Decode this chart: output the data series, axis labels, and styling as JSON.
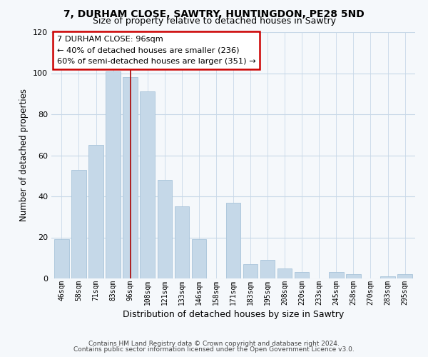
{
  "title1": "7, DURHAM CLOSE, SAWTRY, HUNTINGDON, PE28 5ND",
  "title2": "Size of property relative to detached houses in Sawtry",
  "xlabel": "Distribution of detached houses by size in Sawtry",
  "ylabel": "Number of detached properties",
  "categories": [
    "46sqm",
    "58sqm",
    "71sqm",
    "83sqm",
    "96sqm",
    "108sqm",
    "121sqm",
    "133sqm",
    "146sqm",
    "158sqm",
    "171sqm",
    "183sqm",
    "195sqm",
    "208sqm",
    "220sqm",
    "233sqm",
    "245sqm",
    "258sqm",
    "270sqm",
    "283sqm",
    "295sqm"
  ],
  "values": [
    19,
    53,
    65,
    101,
    98,
    91,
    48,
    35,
    19,
    0,
    37,
    7,
    9,
    5,
    3,
    0,
    3,
    2,
    0,
    1,
    2
  ],
  "bar_color": "#c5d8e8",
  "bar_edge_color": "#a8c4da",
  "highlight_bar_index": 4,
  "highlight_line_color": "#aa0000",
  "ylim": [
    0,
    120
  ],
  "yticks": [
    0,
    20,
    40,
    60,
    80,
    100,
    120
  ],
  "annotation_title": "7 DURHAM CLOSE: 96sqm",
  "annotation_line1": "← 40% of detached houses are smaller (236)",
  "annotation_line2": "60% of semi-detached houses are larger (351) →",
  "annotation_box_color": "#ffffff",
  "annotation_border_color": "#cc0000",
  "footer1": "Contains HM Land Registry data © Crown copyright and database right 2024.",
  "footer2": "Contains public sector information licensed under the Open Government Licence v3.0.",
  "background_color": "#f5f8fb",
  "plot_bg_color": "#f5f8fb",
  "grid_color": "#c8d8e8"
}
